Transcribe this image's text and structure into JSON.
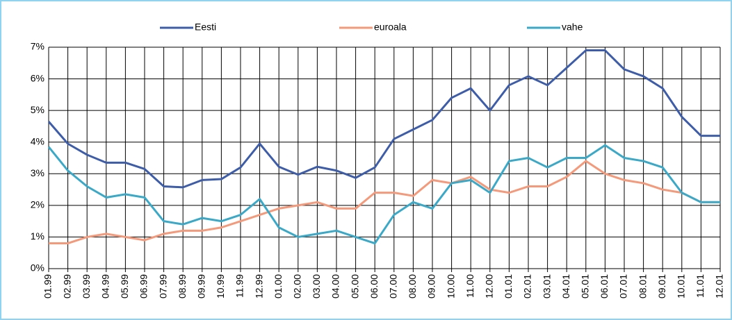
{
  "chart_data": {
    "type": "line",
    "categories": [
      "01.99",
      "02.99",
      "03.99",
      "04.99",
      "05.99",
      "06.99",
      "07.99",
      "08.99",
      "09.99",
      "10.99",
      "11.99",
      "12.99",
      "01.00",
      "02.00",
      "03.00",
      "04.00",
      "05.00",
      "06.00",
      "07.00",
      "08.00",
      "09.00",
      "10.00",
      "11.00",
      "12.00",
      "01.01",
      "02.01",
      "03.01",
      "04.01",
      "05.01",
      "06.01",
      "07.01",
      "08.01",
      "09.01",
      "10.01",
      "11.01",
      "12.01"
    ],
    "series": [
      {
        "name": "Eesti",
        "color": "#3e5da8",
        "values": [
          4.65,
          3.95,
          3.6,
          3.35,
          3.35,
          3.15,
          2.6,
          2.57,
          2.8,
          2.83,
          3.2,
          3.95,
          3.22,
          2.97,
          3.22,
          3.1,
          2.87,
          3.2,
          4.1,
          4.4,
          4.7,
          5.4,
          5.7,
          5.0,
          5.8,
          6.08,
          5.8,
          6.35,
          6.9,
          6.9,
          6.3,
          6.08,
          5.7,
          4.8,
          4.2,
          4.2
        ]
      },
      {
        "name": "euroala",
        "color": "#f4997a",
        "values": [
          0.8,
          0.8,
          1.0,
          1.1,
          1.0,
          0.9,
          1.1,
          1.2,
          1.2,
          1.3,
          1.5,
          1.7,
          1.9,
          2.0,
          2.1,
          1.9,
          1.9,
          2.4,
          2.4,
          2.3,
          2.8,
          2.7,
          2.9,
          2.5,
          2.4,
          2.6,
          2.6,
          2.9,
          3.4,
          3.0,
          2.8,
          2.7,
          2.5,
          2.4,
          2.1,
          2.1
        ]
      },
      {
        "name": "vahe",
        "color": "#3aa9c7",
        "values": [
          3.85,
          3.1,
          2.6,
          2.25,
          2.35,
          2.25,
          1.5,
          1.4,
          1.6,
          1.5,
          1.7,
          2.2,
          1.3,
          1.0,
          1.1,
          1.2,
          1.0,
          0.8,
          1.7,
          2.1,
          1.9,
          2.7,
          2.8,
          2.4,
          3.4,
          3.5,
          3.2,
          3.5,
          3.5,
          3.9,
          3.5,
          3.4,
          3.2,
          2.4,
          2.1,
          2.1
        ]
      }
    ],
    "ylim": [
      0,
      7
    ],
    "yticks": [
      {
        "value": 0,
        "label": "0%"
      },
      {
        "value": 1,
        "label": "1%"
      },
      {
        "value": 2,
        "label": "2%"
      },
      {
        "value": 3,
        "label": "3%"
      },
      {
        "value": 4,
        "label": "4%"
      },
      {
        "value": 5,
        "label": "5%"
      },
      {
        "value": 6,
        "label": "6%"
      },
      {
        "value": 7,
        "label": "7%"
      }
    ],
    "grid": true,
    "legend": "top"
  }
}
